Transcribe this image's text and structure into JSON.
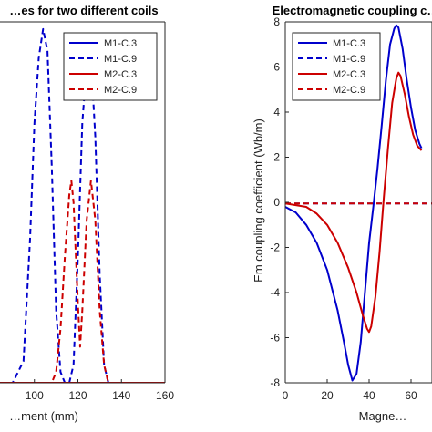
{
  "chart_data": [
    {
      "type": "line",
      "title": "…es for two different coils",
      "xlabel": "…ment (mm)",
      "ylabel": "",
      "xlim": [
        80,
        160
      ],
      "ylim": [
        0,
        1
      ],
      "xticks": [
        100,
        120,
        140,
        160
      ],
      "yticks": [],
      "legend": {
        "placement": "top-right"
      },
      "grid": false,
      "series": [
        {
          "name": "M1-C.3",
          "color": "#0000cc",
          "dash": "solid",
          "points": []
        },
        {
          "name": "M1-C.9",
          "color": "#0000cc",
          "dash": "dashed",
          "points": [
            [
              80,
              0
            ],
            [
              90,
              0
            ],
            [
              95,
              0.06
            ],
            [
              98,
              0.4
            ],
            [
              100,
              0.72
            ],
            [
              102,
              0.9
            ],
            [
              104,
              0.98
            ],
            [
              106,
              0.92
            ],
            [
              108,
              0.6
            ],
            [
              110,
              0.2
            ],
            [
              112,
              0.03
            ],
            [
              114,
              0
            ],
            [
              116,
              0
            ],
            [
              118,
              0.05
            ],
            [
              120,
              0.35
            ],
            [
              122,
              0.72
            ],
            [
              124,
              0.88
            ],
            [
              126,
              0.9
            ],
            [
              128,
              0.68
            ],
            [
              130,
              0.3
            ],
            [
              132,
              0.05
            ],
            [
              134,
              0
            ],
            [
              160,
              0
            ]
          ]
        },
        {
          "name": "M2-C.3",
          "color": "#cc0000",
          "dash": "solid",
          "points": [
            [
              80,
              0
            ],
            [
              160,
              0
            ]
          ]
        },
        {
          "name": "M2-C.9",
          "color": "#cc0000",
          "dash": "dashed",
          "points": [
            [
              80,
              0
            ],
            [
              108,
              0
            ],
            [
              110,
              0.03
            ],
            [
              112,
              0.15
            ],
            [
              114,
              0.35
            ],
            [
              116,
              0.52
            ],
            [
              117,
              0.56
            ],
            [
              118,
              0.5
            ],
            [
              120,
              0.22
            ],
            [
              121,
              0.1
            ],
            [
              122,
              0.2
            ],
            [
              124,
              0.45
            ],
            [
              126,
              0.56
            ],
            [
              128,
              0.45
            ],
            [
              130,
              0.2
            ],
            [
              132,
              0.05
            ],
            [
              134,
              0
            ],
            [
              160,
              0
            ]
          ]
        }
      ]
    },
    {
      "type": "line",
      "title": "Electromagnetic coupling c…",
      "xlabel": "Magne…",
      "ylabel": "Em coupling coefficient (Wb/m)",
      "xlim": [
        0,
        70
      ],
      "ylim": [
        -8,
        8
      ],
      "xticks": [
        0,
        20,
        40,
        60
      ],
      "yticks": [
        -8,
        -6,
        -4,
        -2,
        0,
        2,
        4,
        6,
        8
      ],
      "legend": {
        "placement": "top-left"
      },
      "grid": false,
      "series": [
        {
          "name": "M1-C.3",
          "color": "#0000cc",
          "dash": "solid",
          "points": [
            [
              0,
              -0.2
            ],
            [
              5,
              -0.45
            ],
            [
              10,
              -1.0
            ],
            [
              15,
              -1.8
            ],
            [
              20,
              -3.0
            ],
            [
              25,
              -4.8
            ],
            [
              28,
              -6.2
            ],
            [
              30,
              -7.2
            ],
            [
              32,
              -7.9
            ],
            [
              34,
              -7.6
            ],
            [
              36,
              -6.2
            ],
            [
              38,
              -4.0
            ],
            [
              40,
              -1.8
            ],
            [
              42,
              -0.2
            ],
            [
              44,
              1.5
            ],
            [
              46,
              3.4
            ],
            [
              48,
              5.4
            ],
            [
              50,
              7.0
            ],
            [
              52,
              7.7
            ],
            [
              53,
              7.85
            ],
            [
              54,
              7.75
            ],
            [
              56,
              6.8
            ],
            [
              58,
              5.4
            ],
            [
              60,
              4.2
            ],
            [
              62,
              3.2
            ],
            [
              64,
              2.6
            ],
            [
              65,
              2.4
            ]
          ]
        },
        {
          "name": "M1-C.9",
          "color": "#0000cc",
          "dash": "dashed",
          "points": [
            [
              0,
              -0.05
            ],
            [
              70,
              -0.05
            ]
          ]
        },
        {
          "name": "M2-C.3",
          "color": "#cc0000",
          "dash": "solid",
          "points": [
            [
              0,
              -0.05
            ],
            [
              10,
              -0.2
            ],
            [
              15,
              -0.5
            ],
            [
              20,
              -1.0
            ],
            [
              25,
              -1.8
            ],
            [
              30,
              -2.9
            ],
            [
              34,
              -4.0
            ],
            [
              37,
              -5.0
            ],
            [
              39,
              -5.6
            ],
            [
              40,
              -5.75
            ],
            [
              41,
              -5.5
            ],
            [
              43,
              -4.2
            ],
            [
              45,
              -2.2
            ],
            [
              47,
              0.2
            ],
            [
              49,
              2.4
            ],
            [
              51,
              4.4
            ],
            [
              53,
              5.5
            ],
            [
              54,
              5.75
            ],
            [
              55,
              5.6
            ],
            [
              57,
              4.8
            ],
            [
              59,
              3.8
            ],
            [
              61,
              3.0
            ],
            [
              63,
              2.5
            ],
            [
              65,
              2.3
            ]
          ]
        },
        {
          "name": "M2-C.9",
          "color": "#cc0000",
          "dash": "dashed",
          "points": [
            [
              0,
              -0.05
            ],
            [
              70,
              -0.05
            ]
          ]
        }
      ]
    }
  ]
}
